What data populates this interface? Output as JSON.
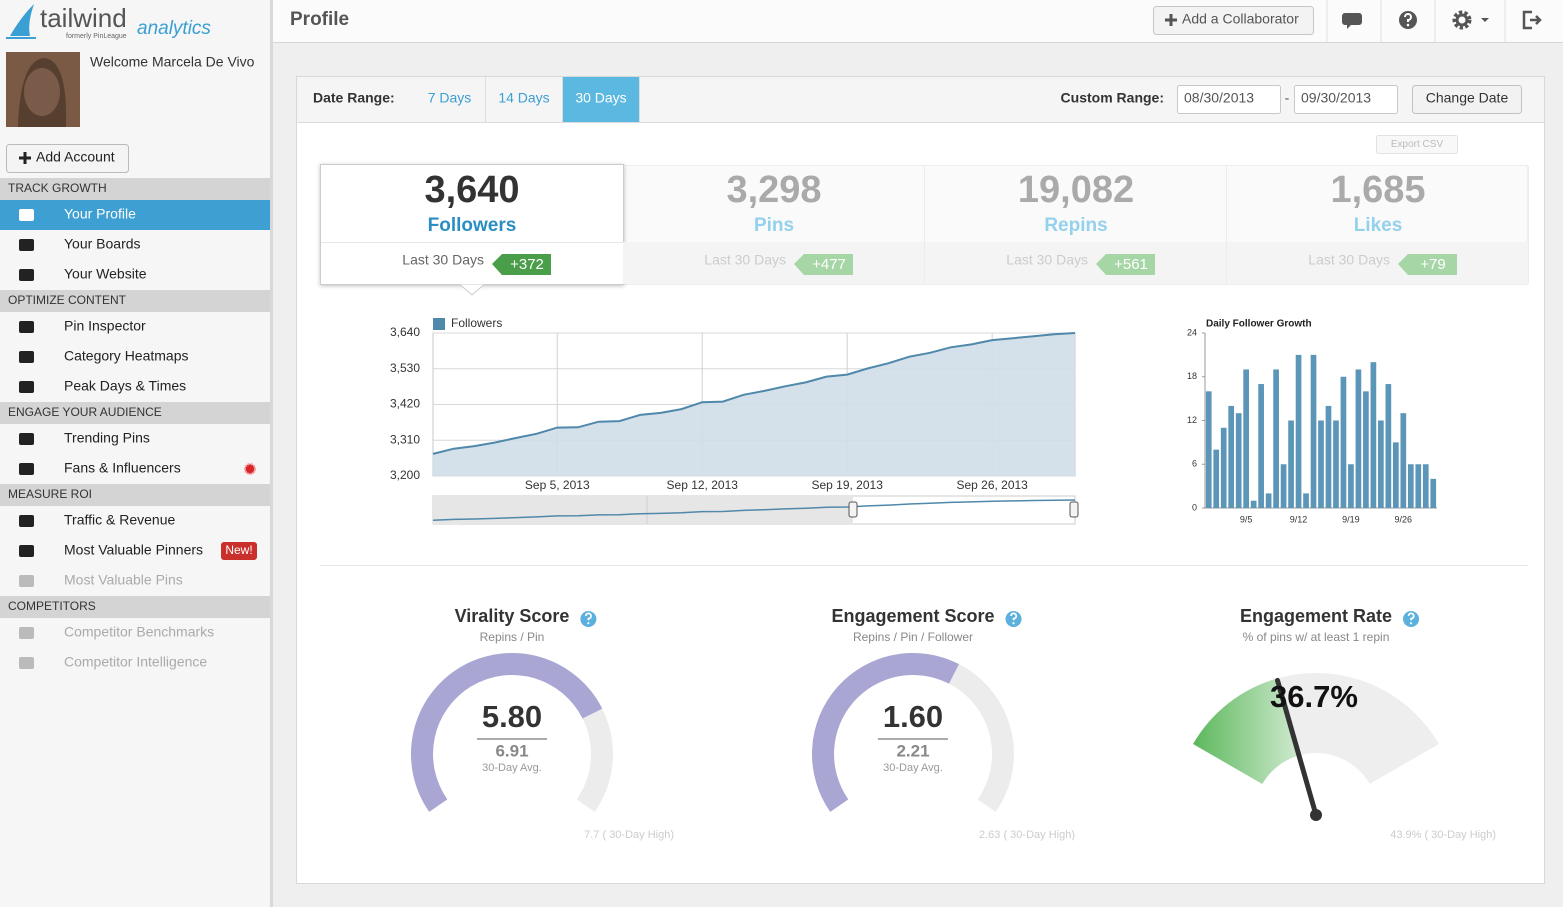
{
  "brand": {
    "name": "tailwind",
    "product": "analytics",
    "tagline": "formerly PinLeague"
  },
  "user": {
    "welcome": "Welcome Marcela De Vivo"
  },
  "add_account": "Add Account",
  "nav": [
    {
      "section": "TRACK GROWTH",
      "items": [
        {
          "label": "Your Profile",
          "active": true
        },
        {
          "label": "Your Boards"
        },
        {
          "label": "Your Website"
        }
      ]
    },
    {
      "section": "OPTIMIZE CONTENT",
      "items": [
        {
          "label": "Pin Inspector"
        },
        {
          "label": "Category Heatmaps"
        },
        {
          "label": "Peak Days & Times"
        }
      ]
    },
    {
      "section": "ENGAGE YOUR AUDIENCE",
      "items": [
        {
          "label": "Trending Pins"
        },
        {
          "label": "Fans & Influencers",
          "alert": true
        }
      ]
    },
    {
      "section": "MEASURE ROI",
      "items": [
        {
          "label": "Traffic & Revenue"
        },
        {
          "label": "Most Valuable Pinners",
          "badge": "New!"
        },
        {
          "label": "Most Valuable Pins",
          "muted": true
        }
      ]
    },
    {
      "section": "COMPETITORS",
      "items": [
        {
          "label": "Competitor Benchmarks",
          "muted": true
        },
        {
          "label": "Competitor Intelligence",
          "muted": true
        }
      ]
    }
  ],
  "header": {
    "title": "Profile",
    "collaborator": "Add a Collaborator"
  },
  "date_range": {
    "label": "Date Range:",
    "options": [
      "7 Days",
      "14 Days",
      "30 Days"
    ],
    "selected": 2,
    "custom_label": "Custom Range:",
    "from": "08/30/2013",
    "separator": "-",
    "to": "09/30/2013",
    "button": "Change Date"
  },
  "export": "Export CSV",
  "stats_selected": 0,
  "stats": [
    {
      "value": "3,640",
      "label": "Followers",
      "period": "Last 30 Days",
      "change": "+372"
    },
    {
      "value": "3,298",
      "label": "Pins",
      "period": "Last 30 Days",
      "change": "+477"
    },
    {
      "value": "19,082",
      "label": "Repins",
      "period": "Last 30 Days",
      "change": "+561"
    },
    {
      "value": "1,685",
      "label": "Likes",
      "period": "Last 30 Days",
      "change": "+79"
    }
  ],
  "chart_data": [
    {
      "type": "area",
      "series": [
        {
          "name": "Followers",
          "color": "#4f88aa",
          "x": [
            "2013-08-30",
            "2013-08-31",
            "2013-09-01",
            "2013-09-02",
            "2013-09-03",
            "2013-09-04",
            "2013-09-05",
            "2013-09-06",
            "2013-09-07",
            "2013-09-08",
            "2013-09-09",
            "2013-09-10",
            "2013-09-11",
            "2013-09-12",
            "2013-09-13",
            "2013-09-14",
            "2013-09-15",
            "2013-09-16",
            "2013-09-17",
            "2013-09-18",
            "2013-09-19",
            "2013-09-20",
            "2013-09-21",
            "2013-09-22",
            "2013-09-23",
            "2013-09-24",
            "2013-09-25",
            "2013-09-26",
            "2013-09-27",
            "2013-09-28",
            "2013-09-29",
            "2013-09-30"
          ],
          "values": [
            3268,
            3284,
            3292,
            3303,
            3317,
            3330,
            3349,
            3350,
            3367,
            3369,
            3388,
            3394,
            3406,
            3427,
            3429,
            3450,
            3462,
            3476,
            3488,
            3506,
            3512,
            3531,
            3547,
            3567,
            3579,
            3596,
            3605,
            3618,
            3624,
            3630,
            3636,
            3640
          ]
        }
      ],
      "xlim": [
        "2013-08-30",
        "2013-09-30"
      ],
      "xticks": [
        {
          "value": "2013-09-05",
          "label": "Sep 5, 2013"
        },
        {
          "value": "2013-09-12",
          "label": "Sep 12, 2013"
        },
        {
          "value": "2013-09-19",
          "label": "Sep 19, 2013"
        },
        {
          "value": "2013-09-26",
          "label": "Sep 26, 2013"
        }
      ],
      "ylim": [
        3200,
        3640
      ],
      "yticks": [
        {
          "value": 3200,
          "label": "3,200"
        },
        {
          "value": 3310,
          "label": "3,310"
        },
        {
          "value": 3420,
          "label": "3,420"
        },
        {
          "value": 3530,
          "label": "3,530"
        },
        {
          "value": 3640,
          "label": "3,640"
        }
      ],
      "grid": true,
      "legend": "top-left"
    },
    {
      "type": "bar",
      "title": "Daily Follower Growth",
      "color": "#5b95b8",
      "categories": [
        null,
        null,
        null,
        null,
        null,
        "9/5",
        null,
        null,
        null,
        null,
        null,
        null,
        "9/12",
        null,
        null,
        null,
        null,
        null,
        null,
        "9/19",
        null,
        null,
        null,
        null,
        null,
        null,
        "9/26",
        null,
        null,
        null,
        null
      ],
      "values": [
        16,
        8,
        11,
        14,
        13,
        19,
        1,
        17,
        2,
        19,
        6,
        12,
        21,
        2,
        21,
        12,
        14,
        12,
        18,
        6,
        19,
        16,
        20,
        12,
        17,
        9,
        13,
        6,
        6,
        6,
        4
      ],
      "ylim": [
        0,
        24
      ],
      "yticks": [
        0,
        6,
        12,
        18,
        24
      ]
    }
  ],
  "gauges": [
    {
      "type": "arc",
      "title": "Virality Score",
      "subtitle": "Repins / Pin",
      "value": 5.8,
      "value_label": "5.80",
      "avg": 6.91,
      "avg_note": "30-Day Avg.",
      "high": 7.7,
      "high_label": "7.7 ( 30-Day High)",
      "color": "#a9a6d3"
    },
    {
      "type": "arc",
      "title": "Engagement Score",
      "subtitle": "Repins / Pin / Follower",
      "value": 1.6,
      "value_label": "1.60",
      "avg": 2.21,
      "avg_note": "30-Day Avg.",
      "high": 2.63,
      "high_label": "2.63 ( 30-Day High)",
      "color": "#a9a6d3"
    },
    {
      "type": "needle",
      "title": "Engagement Rate",
      "subtitle": "% of pins w/ at least 1 repin",
      "value": 36.7,
      "value_label": "36.7%",
      "high": 43.9,
      "high_label": "43.9% ( 30-Day High)",
      "range": [
        0,
        100
      ],
      "color": "#5cb85c"
    }
  ]
}
